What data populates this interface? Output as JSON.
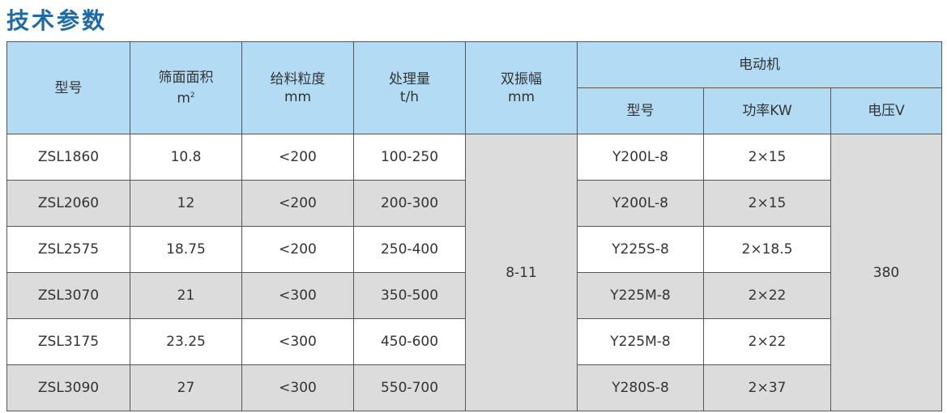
{
  "title": "技术参数",
  "header": {
    "model": "型号",
    "screen_area": "筛面面积",
    "screen_area_unit": "m",
    "screen_area_sup": "2",
    "feed_size": "给料粒度",
    "feed_size_unit": "mm",
    "capacity": "处理量",
    "capacity_unit": "t/h",
    "amplitude": "双振幅",
    "amplitude_unit": "mm",
    "motor": "电动机",
    "motor_model": "型号",
    "motor_power": "功率KW",
    "motor_voltage": "电压V"
  },
  "amplitude_value": "8-11",
  "voltage_value": "380",
  "rows": [
    {
      "model": "ZSL1860",
      "area": "10.8",
      "feed": "<200",
      "capacity": "100-250",
      "motor_model": "Y200L-8",
      "power": "2×15"
    },
    {
      "model": "ZSL2060",
      "area": "12",
      "feed": "<200",
      "capacity": "200-300",
      "motor_model": "Y200L-8",
      "power": "2×15"
    },
    {
      "model": "ZSL2575",
      "area": "18.75",
      "feed": "<200",
      "capacity": "250-400",
      "motor_model": "Y225S-8",
      "power": "2×18.5"
    },
    {
      "model": "ZSL3070",
      "area": "21",
      "feed": "<300",
      "capacity": "350-500",
      "motor_model": "Y225M-8",
      "power": "2×22"
    },
    {
      "model": "ZSL3175",
      "area": "23.25",
      "feed": "<300",
      "capacity": "450-600",
      "motor_model": "Y225M-8",
      "power": "2×22"
    },
    {
      "model": "ZSL3090",
      "area": "27",
      "feed": "<300",
      "capacity": "550-700",
      "motor_model": "Y280S-8",
      "power": "2×37"
    }
  ]
}
